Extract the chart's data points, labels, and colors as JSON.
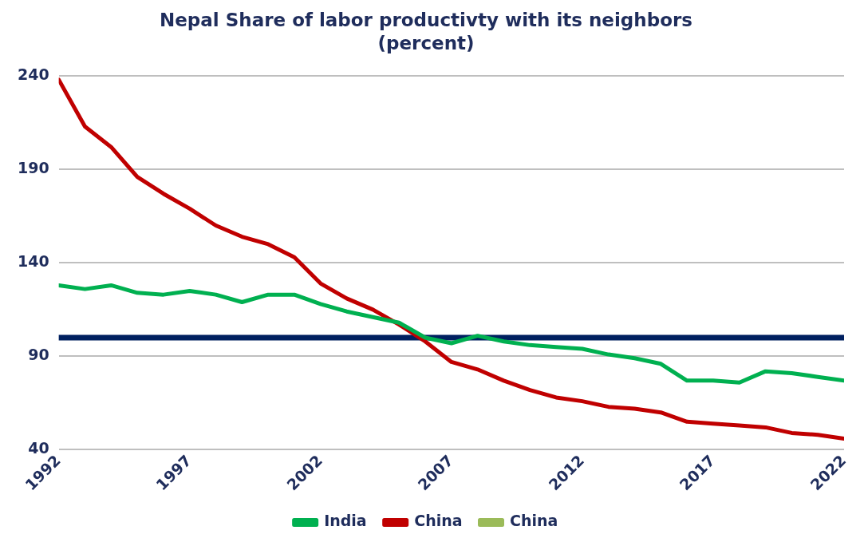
{
  "chart_data": {
    "type": "line",
    "title": "Nepal Share of labor productivty with its neighbors",
    "subtitle": "(percent)",
    "x": [
      1992,
      1993,
      1994,
      1995,
      1996,
      1997,
      1998,
      1999,
      2000,
      2001,
      2002,
      2003,
      2004,
      2005,
      2006,
      2007,
      2008,
      2009,
      2010,
      2011,
      2012,
      2013,
      2014,
      2015,
      2016,
      2017,
      2018,
      2019,
      2020,
      2021,
      2022
    ],
    "series": [
      {
        "name": "India",
        "color": "#00b050",
        "values": [
          128,
          126,
          128,
          124,
          123,
          125,
          123,
          119,
          123,
          123,
          118,
          114,
          111,
          108,
          100,
          97,
          101,
          98,
          96,
          95,
          94,
          91,
          89,
          86,
          77,
          77,
          76,
          82,
          81,
          79,
          77
        ]
      },
      {
        "name": "China",
        "color": "#c00000",
        "values": [
          238,
          213,
          202,
          186,
          177,
          169,
          160,
          154,
          150,
          143,
          129,
          121,
          115,
          107,
          98,
          87,
          83,
          77,
          72,
          68,
          66,
          63,
          62,
          60,
          55,
          54,
          53,
          52,
          49,
          48,
          46
        ]
      },
      {
        "name": "China",
        "color": "#9bbb59",
        "values": [
          null,
          null,
          null,
          null,
          null,
          null,
          null,
          null,
          null,
          null,
          null,
          null,
          null,
          null,
          null,
          null,
          null,
          null,
          null,
          null,
          null,
          null,
          null,
          null,
          null,
          null,
          null,
          null,
          null,
          null,
          null
        ]
      }
    ],
    "xlim": [
      1992,
      2022
    ],
    "xticks": [
      1992,
      1997,
      2002,
      2007,
      2012,
      2017,
      2022
    ],
    "ylim": [
      40,
      240
    ],
    "yticks": [
      40,
      90,
      140,
      190,
      240
    ],
    "ref_lines": [
      {
        "axis": "y",
        "value": 100,
        "color": "#002060"
      }
    ],
    "grid": "y",
    "legend": "bottom",
    "marker": "none",
    "line_style": "solid"
  }
}
